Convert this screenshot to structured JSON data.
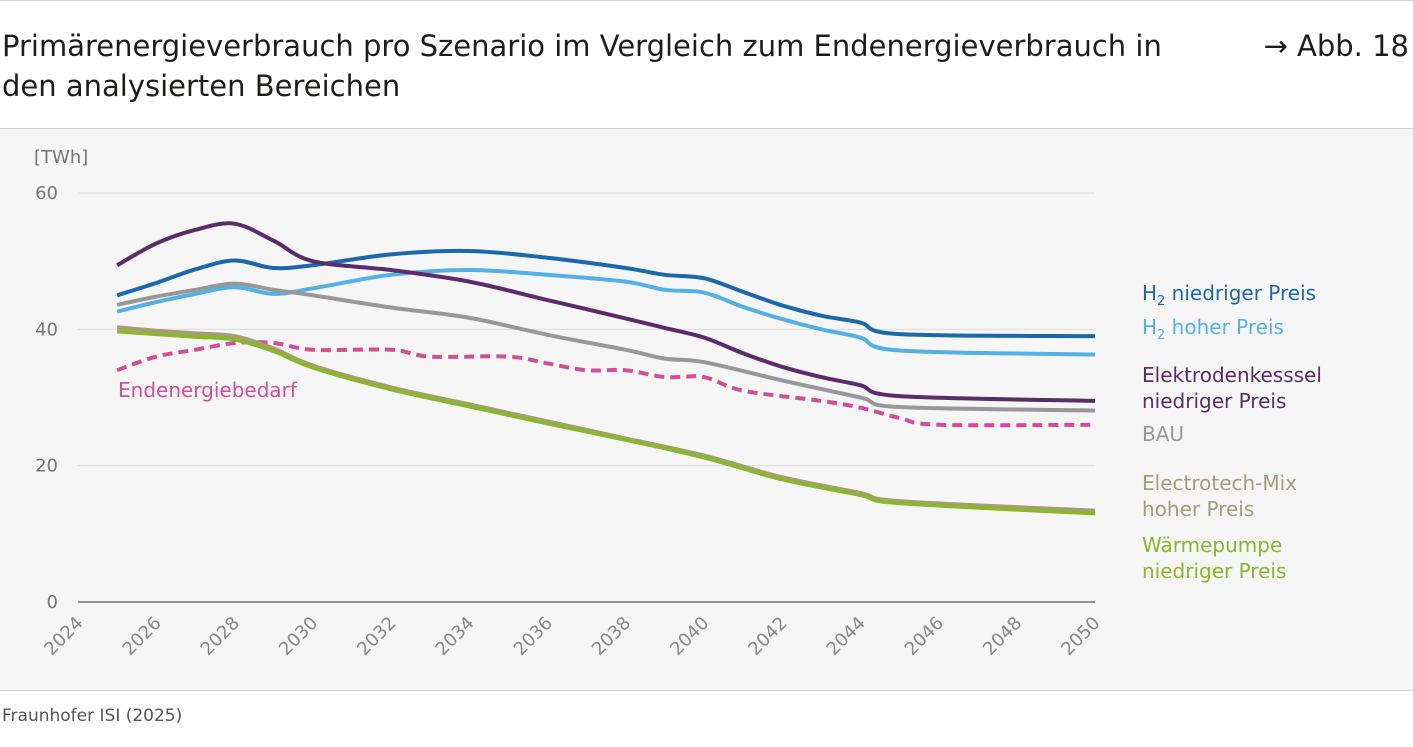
{
  "title": "Primärenergieverbrauch pro Szenario im Vergleich zum Endenergieverbrauch in den analysierten Bereichen",
  "figure_ref": "→ Abb. 18",
  "source": "Fraunhofer ISI (2025)",
  "chart_data": {
    "type": "line",
    "ylabel": "[TWh]",
    "ylim": [
      0,
      60
    ],
    "yticks": [
      0,
      20,
      40,
      60
    ],
    "xlim": [
      2024,
      2050
    ],
    "xticks": [
      2024,
      2026,
      2028,
      2030,
      2032,
      2034,
      2036,
      2038,
      2040,
      2042,
      2044,
      2046,
      2048,
      2050
    ],
    "grid": "horizontal",
    "legend": "right",
    "series": [
      {
        "name": "H₂ niedriger Preis",
        "label_main": "H",
        "label_sub": "2",
        "label_rest": " niedriger Preis",
        "color": "#1b68ad",
        "dashed": false,
        "x": [
          2025,
          2026,
          2027,
          2028,
          2029,
          2030,
          2032,
          2034,
          2036,
          2038,
          2039,
          2040,
          2041,
          2042,
          2043,
          2044,
          2045,
          2050
        ],
        "y": [
          45,
          46.8,
          48.8,
          50.1,
          49,
          49.4,
          51,
          51.5,
          50.5,
          49,
          48,
          47.5,
          45.5,
          43.5,
          42,
          41,
          39.3,
          39
        ]
      },
      {
        "name": "H₂ hoher Preis",
        "label_main": "H",
        "label_sub": "2",
        "label_rest": " hoher Preis",
        "color": "#55b1e5",
        "dashed": false,
        "x": [
          2025,
          2026,
          2027,
          2028,
          2029,
          2030,
          2032,
          2034,
          2036,
          2038,
          2039,
          2040,
          2041,
          2042,
          2043,
          2044,
          2045,
          2050
        ],
        "y": [
          42.6,
          44,
          45.2,
          46.2,
          45.2,
          46,
          48,
          48.7,
          48,
          47,
          45.8,
          45.4,
          43.3,
          41.5,
          40,
          38.8,
          36.9,
          36.3
        ]
      },
      {
        "name": "Elektrodenkesssel niedriger Preis",
        "lines": [
          "Elektrodenkesssel",
          "niedriger Preis"
        ],
        "color": "#5b2b6c",
        "dashed": false,
        "x": [
          2025,
          2026,
          2027,
          2028,
          2029,
          2030,
          2032,
          2034,
          2036,
          2038,
          2039,
          2040,
          2041,
          2042,
          2043,
          2044,
          2045,
          2050
        ],
        "y": [
          49.4,
          52.6,
          54.6,
          55.5,
          53,
          50,
          48.7,
          47,
          44.3,
          41.6,
          40.2,
          38.8,
          36.5,
          34.5,
          33,
          31.8,
          30.2,
          29.5
        ]
      },
      {
        "name": "BAU",
        "lines": [
          "BAU"
        ],
        "color": "#98989a",
        "dashed": false,
        "x": [
          2025,
          2026,
          2027,
          2028,
          2029,
          2030,
          2032,
          2034,
          2036,
          2038,
          2039,
          2040,
          2042,
          2044,
          2045,
          2050
        ],
        "y": [
          43.6,
          44.8,
          45.8,
          46.7,
          45.8,
          45,
          43.2,
          41.7,
          39.2,
          37,
          35.7,
          35.2,
          32.5,
          30,
          28.6,
          28.1
        ]
      },
      {
        "name": "Endenergiebedarf",
        "lines": [
          "Endenergiebedarf"
        ],
        "color": "#d34d97",
        "dashed": true,
        "x": [
          2025,
          2026,
          2027,
          2028,
          2029,
          2030,
          2032,
          2033,
          2035,
          2036,
          2037,
          2038,
          2039,
          2040,
          2041,
          2043,
          2044,
          2045,
          2046,
          2050
        ],
        "y": [
          34,
          36,
          37,
          38,
          38,
          37,
          37,
          36,
          36,
          35,
          34,
          34,
          33,
          33,
          31,
          29.5,
          28.5,
          27,
          26,
          26
        ]
      },
      {
        "name": "Electrotech-Mix hoher Preis",
        "lines": [
          "Electrotech-Mix",
          "hoher Preis"
        ],
        "color": "#a69c79",
        "dashed": false,
        "x": [
          2025,
          2026,
          2027,
          2028,
          2029,
          2030,
          2032,
          2034,
          2036,
          2038,
          2040,
          2042,
          2044,
          2045,
          2050
        ],
        "y": [
          40.3,
          39.8,
          39.4,
          39,
          37.2,
          34.7,
          31.5,
          29,
          26.5,
          24,
          21.5,
          18.3,
          16,
          14.8,
          13.4
        ]
      },
      {
        "name": "Wärmepumpe niedriger Preis",
        "lines": [
          "Wärmepumpe",
          "niedriger Preis"
        ],
        "color": "#8cb62b",
        "dashed": false,
        "x": [
          2025,
          2026,
          2027,
          2028,
          2029,
          2030,
          2032,
          2034,
          2036,
          2038,
          2040,
          2042,
          2044,
          2045,
          2050
        ],
        "y": [
          39.7,
          39.3,
          38.9,
          38.5,
          36.8,
          34.4,
          31.2,
          28.7,
          26.2,
          23.8,
          21.2,
          18,
          15.7,
          14.5,
          13
        ]
      }
    ]
  }
}
